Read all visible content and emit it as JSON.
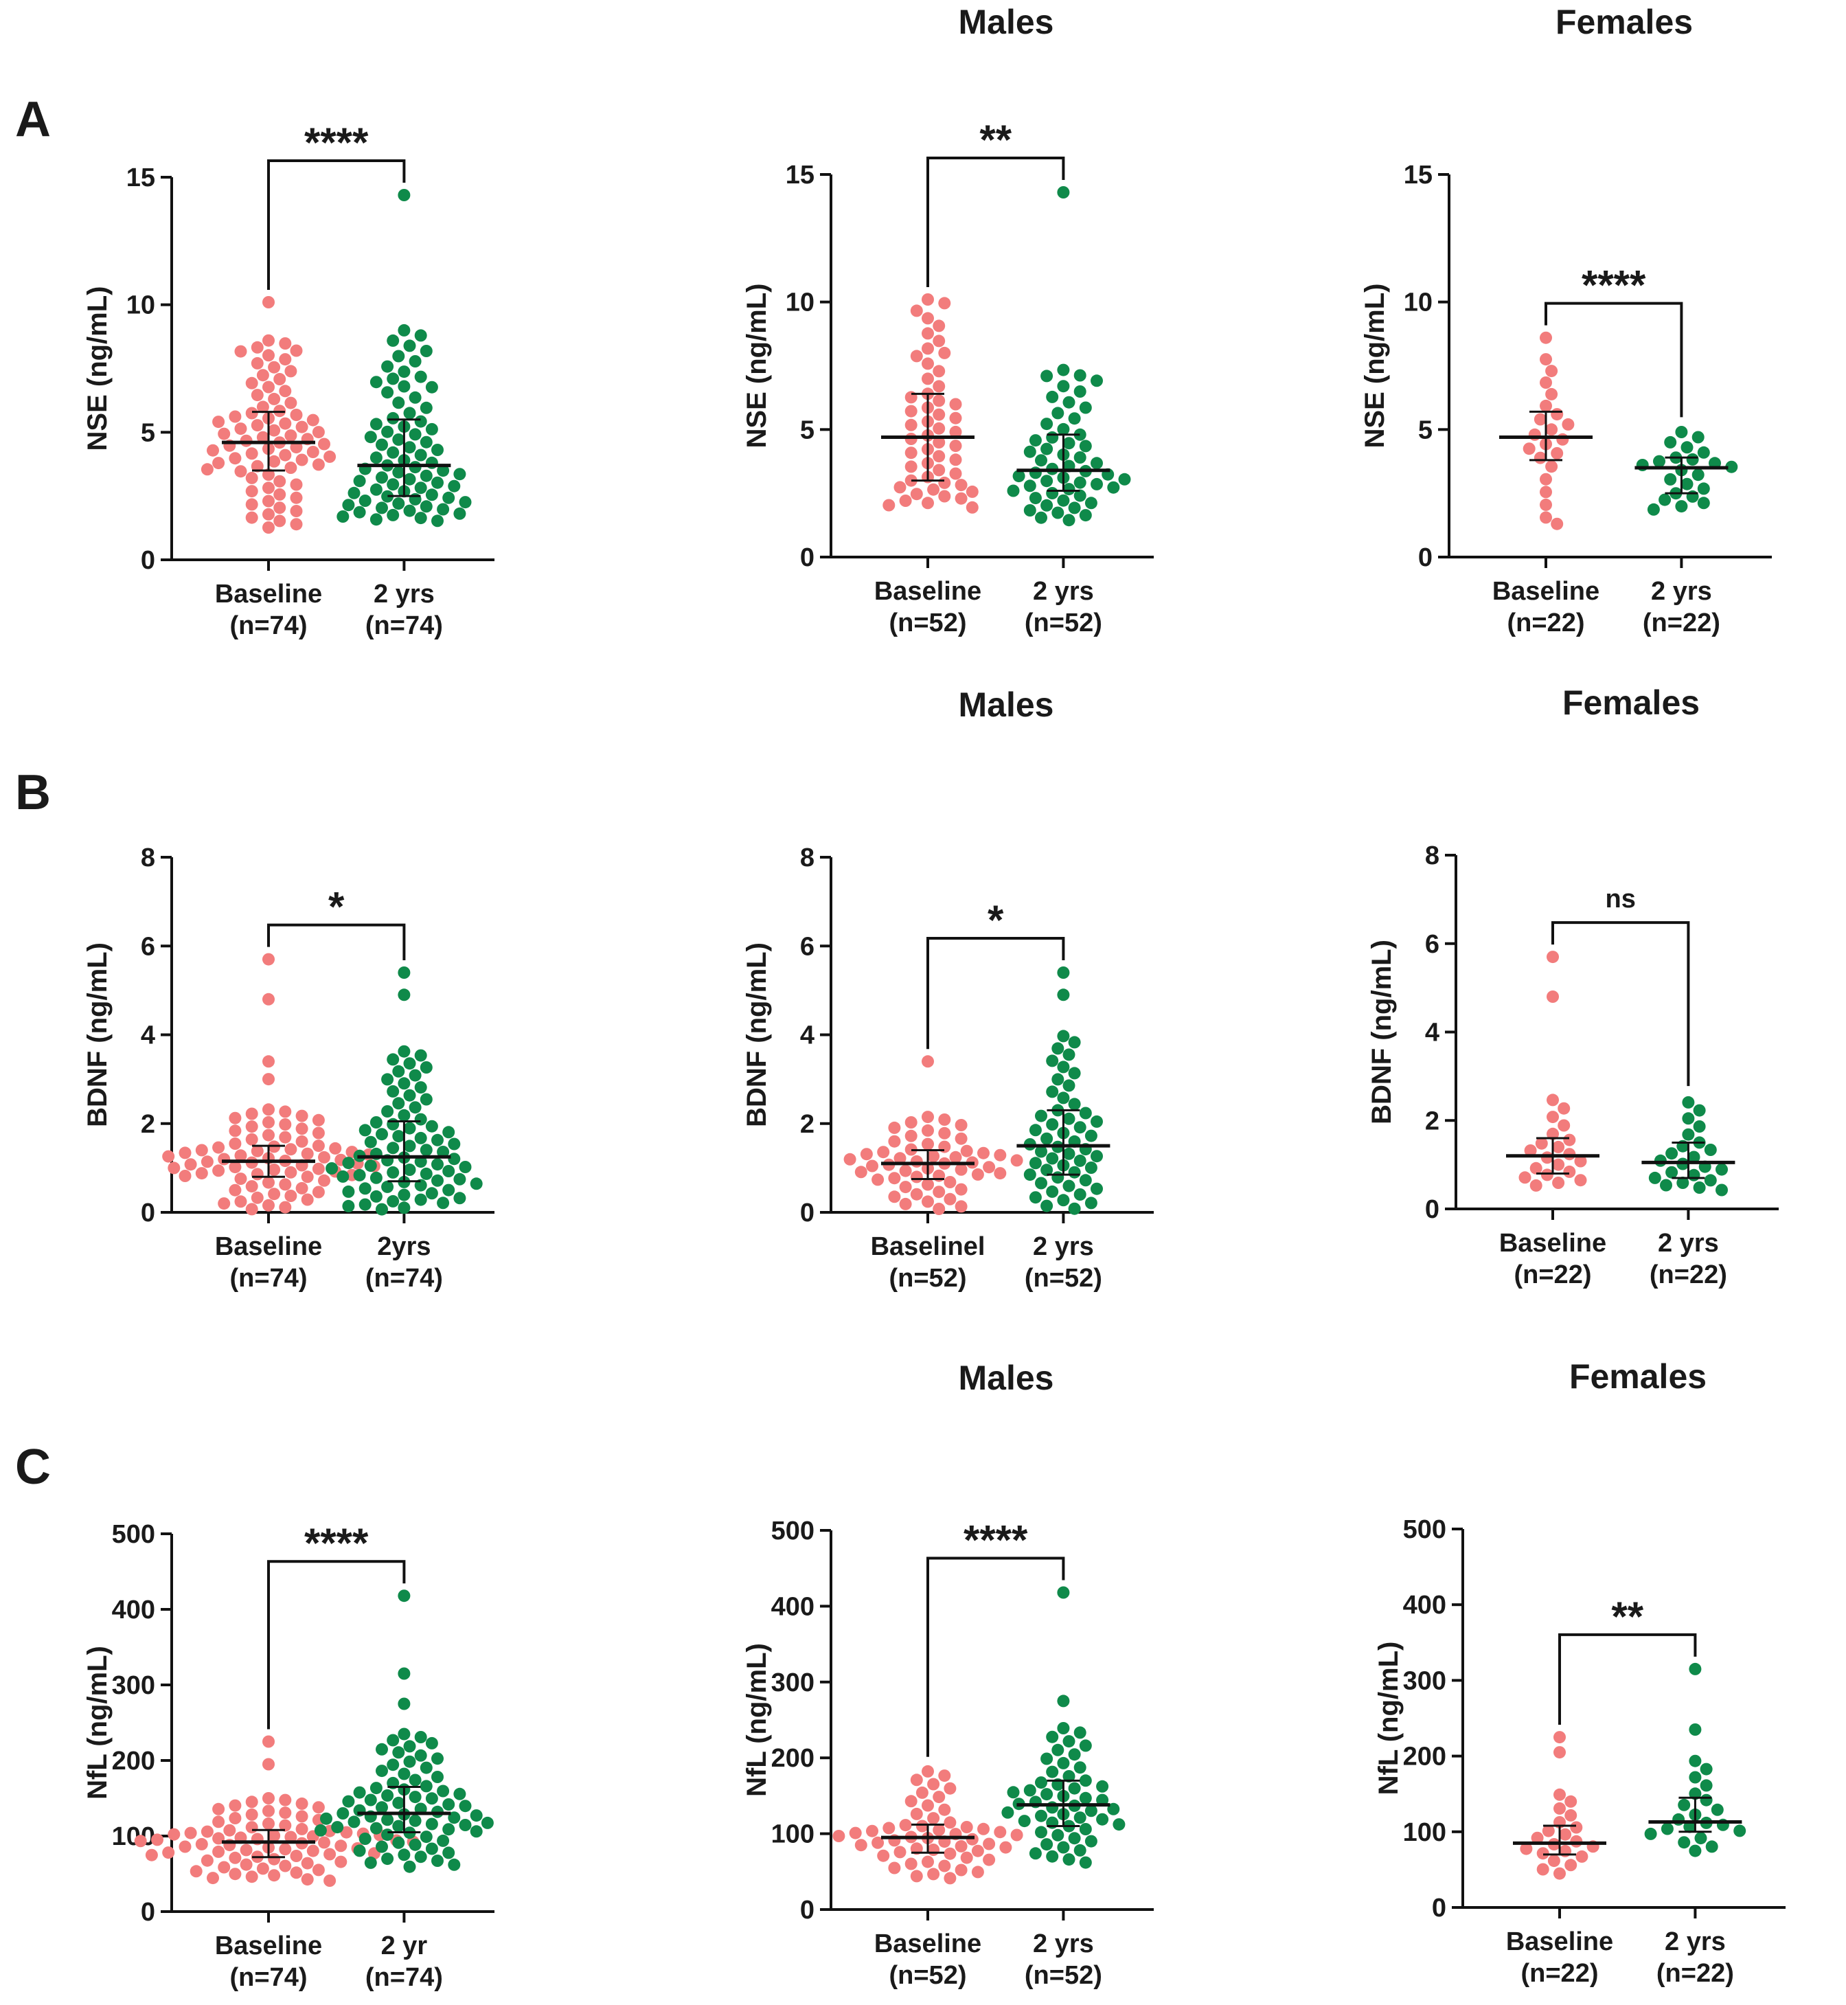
{
  "colors": {
    "baseline": "#f27c7c",
    "followup": "#0f8a4a",
    "axis": "#111111"
  },
  "panel_letters": [
    "A",
    "B",
    "C"
  ],
  "chart_data": [
    {
      "type": "scatter",
      "panel": "A",
      "group_title": "",
      "ylabel": "NSE (ng/mL)",
      "ylim": [
        0,
        15
      ],
      "yticks": [
        0,
        5,
        10,
        15
      ],
      "categories": [
        {
          "label": "Baseline",
          "n": "(n=74)"
        },
        {
          "label": "2 yrs",
          "n": "(n=74)"
        }
      ],
      "significance": "****",
      "series": [
        {
          "category": 0,
          "count": 74,
          "median": 4.6,
          "q1": 3.5,
          "q3": 5.8,
          "min": 1.2,
          "max": 10.1,
          "outliers": [
            10.1,
            8.6,
            8.2
          ]
        },
        {
          "category": 1,
          "count": 74,
          "median": 3.7,
          "q1": 2.5,
          "q3": 5.5,
          "min": 1.5,
          "max": 14.3,
          "outliers": [
            14.3,
            7.1,
            6.8
          ]
        }
      ]
    },
    {
      "type": "scatter",
      "panel": "A",
      "group_title": "Males",
      "ylabel": "NSE (ng/mL)",
      "ylim": [
        0,
        15
      ],
      "yticks": [
        0,
        5,
        10,
        15
      ],
      "categories": [
        {
          "label": "Baseline",
          "n": "(n=52)"
        },
        {
          "label": "2 yrs",
          "n": "(n=52)"
        }
      ],
      "significance": "**",
      "series": [
        {
          "category": 0,
          "count": 52,
          "median": 4.7,
          "q1": 3.0,
          "q3": 6.4,
          "min": 1.9,
          "max": 10.1,
          "outliers": [
            10.1,
            8.0
          ]
        },
        {
          "category": 1,
          "count": 52,
          "median": 3.4,
          "q1": 2.6,
          "q3": 4.8,
          "min": 1.4,
          "max": 14.3,
          "outliers": [
            14.3,
            7.1
          ]
        }
      ]
    },
    {
      "type": "scatter",
      "panel": "A",
      "group_title": "Females",
      "ylabel": "NSE (ng/mL)",
      "ylim": [
        0,
        15
      ],
      "yticks": [
        0,
        5,
        10,
        15
      ],
      "categories": [
        {
          "label": "Baseline",
          "n": "(n=22)"
        },
        {
          "label": "2 yrs",
          "n": "(n=22)"
        }
      ],
      "significance": "****",
      "series": [
        {
          "category": 0,
          "count": 22,
          "median": 4.7,
          "q1": 3.8,
          "q3": 5.7,
          "min": 1.3,
          "max": 8.6,
          "outliers": [
            8.6,
            1.3
          ]
        },
        {
          "category": 1,
          "count": 22,
          "median": 3.5,
          "q1": 2.5,
          "q3": 3.9,
          "min": 1.8,
          "max": 5.0,
          "outliers": []
        }
      ]
    },
    {
      "type": "scatter",
      "panel": "B",
      "group_title": "",
      "ylabel": "BDNF (ng/mL)",
      "ylim": [
        0,
        8
      ],
      "yticks": [
        0,
        2,
        4,
        6,
        8
      ],
      "categories": [
        {
          "label": "Baseline",
          "n": "(n=74)"
        },
        {
          "label": "2yrs",
          "n": "(n=74)"
        }
      ],
      "significance": "*",
      "series": [
        {
          "category": 0,
          "count": 74,
          "median": 1.15,
          "q1": 0.8,
          "q3": 1.5,
          "min": 0.05,
          "max": 5.7,
          "outliers": [
            5.7,
            4.8,
            3.4,
            3.0
          ]
        },
        {
          "category": 1,
          "count": 74,
          "median": 1.25,
          "q1": 0.7,
          "q3": 2.05,
          "min": 0.05,
          "max": 5.4,
          "outliers": [
            5.4,
            4.9
          ]
        }
      ]
    },
    {
      "type": "scatter",
      "panel": "B",
      "group_title": "Males",
      "ylabel": "BDNF (ng/mL)",
      "ylim": [
        0,
        8
      ],
      "yticks": [
        0,
        2,
        4,
        6,
        8
      ],
      "categories": [
        {
          "label": "Baselinel",
          "n": "(n=52)"
        },
        {
          "label": "2 yrs",
          "n": "(n=52)"
        }
      ],
      "significance": "*",
      "series": [
        {
          "category": 0,
          "count": 52,
          "median": 1.1,
          "q1": 0.75,
          "q3": 1.4,
          "min": 0.05,
          "max": 3.4,
          "outliers": [
            3.4
          ]
        },
        {
          "category": 1,
          "count": 52,
          "median": 1.5,
          "q1": 0.85,
          "q3": 2.3,
          "min": 0.05,
          "max": 5.4,
          "outliers": [
            5.4,
            4.9
          ]
        }
      ]
    },
    {
      "type": "scatter",
      "panel": "B",
      "group_title": "Females",
      "ylabel": "BDNF (ng/mL)",
      "ylim": [
        0,
        8
      ],
      "yticks": [
        0,
        2,
        4,
        6,
        8
      ],
      "categories": [
        {
          "label": "Baseline",
          "n": "(n=22)"
        },
        {
          "label": "2 yrs",
          "n": "(n=22)"
        }
      ],
      "significance": "ns",
      "series": [
        {
          "category": 0,
          "count": 22,
          "median": 1.2,
          "q1": 0.8,
          "q3": 1.6,
          "min": 0.5,
          "max": 5.7,
          "outliers": [
            5.7,
            4.8
          ]
        },
        {
          "category": 1,
          "count": 22,
          "median": 1.05,
          "q1": 0.7,
          "q3": 1.5,
          "min": 0.4,
          "max": 2.5,
          "outliers": []
        }
      ]
    },
    {
      "type": "scatter",
      "panel": "C",
      "group_title": "",
      "ylabel": "NfL (ng/mL)",
      "ylim": [
        0,
        500
      ],
      "yticks": [
        0,
        100,
        200,
        300,
        400,
        500
      ],
      "categories": [
        {
          "label": "Baseline",
          "n": "(n=74)"
        },
        {
          "label": "2 yr",
          "n": "(n=74)"
        }
      ],
      "significance": "****",
      "series": [
        {
          "category": 0,
          "count": 74,
          "median": 92,
          "q1": 72,
          "q3": 108,
          "min": 40,
          "max": 225,
          "outliers": [
            225,
            195
          ]
        },
        {
          "category": 1,
          "count": 74,
          "median": 130,
          "q1": 105,
          "q3": 165,
          "min": 58,
          "max": 418,
          "outliers": [
            418,
            315,
            275
          ]
        }
      ]
    },
    {
      "type": "scatter",
      "panel": "C",
      "group_title": "Males",
      "ylabel": "NfL (ng/mL)",
      "ylim": [
        0,
        500
      ],
      "yticks": [
        0,
        100,
        200,
        300,
        400,
        500
      ],
      "categories": [
        {
          "label": "Baseline",
          "n": "(n=52)"
        },
        {
          "label": "2 yrs",
          "n": "(n=52)"
        }
      ],
      "significance": "****",
      "series": [
        {
          "category": 0,
          "count": 52,
          "median": 95,
          "q1": 75,
          "q3": 112,
          "min": 40,
          "max": 185,
          "outliers": []
        },
        {
          "category": 1,
          "count": 52,
          "median": 138,
          "q1": 110,
          "q3": 170,
          "min": 60,
          "max": 418,
          "outliers": [
            418,
            275
          ]
        }
      ]
    },
    {
      "type": "scatter",
      "panel": "C",
      "group_title": "Females",
      "ylabel": "NfL (ng/mL)",
      "ylim": [
        0,
        500
      ],
      "yticks": [
        0,
        100,
        200,
        300,
        400,
        500
      ],
      "categories": [
        {
          "label": "Baseline",
          "n": "(n=22)"
        },
        {
          "label": "2 yrs",
          "n": "(n=22)"
        }
      ],
      "significance": "**",
      "series": [
        {
          "category": 0,
          "count": 22,
          "median": 85,
          "q1": 70,
          "q3": 108,
          "min": 42,
          "max": 225,
          "outliers": [
            225,
            205
          ]
        },
        {
          "category": 1,
          "count": 22,
          "median": 113,
          "q1": 100,
          "q3": 145,
          "min": 72,
          "max": 315,
          "outliers": [
            315,
            235
          ]
        }
      ]
    }
  ]
}
